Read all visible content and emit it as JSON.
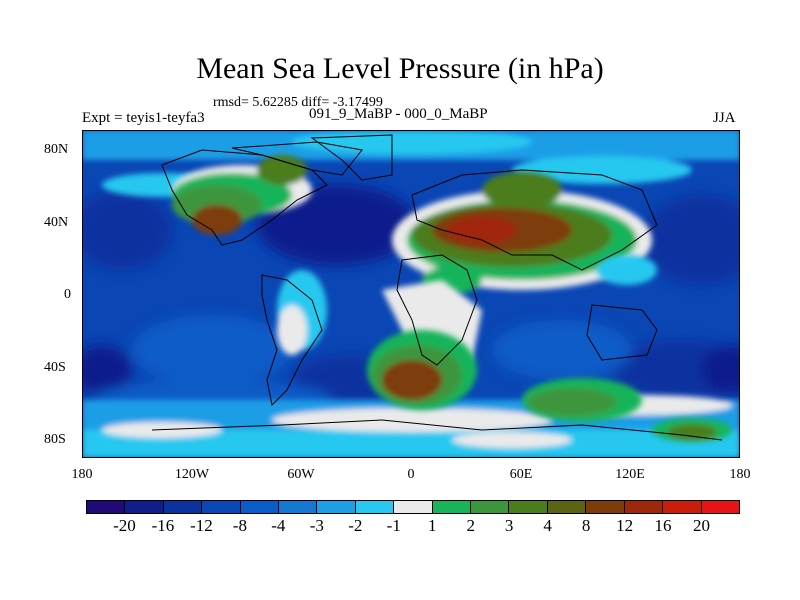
{
  "figure": {
    "title": "Mean Sea Level Pressure (in hPa)",
    "stats": "rmsd= 5.62285 diff= -3.17499",
    "experiment": "Expt = teyis1-teyfa3",
    "comparison": "091_9_MaBP - 000_0_MaBP",
    "season": "JJA"
  },
  "axes": {
    "lat_labels": [
      "80N",
      "40N",
      "0",
      "40S",
      "80S"
    ],
    "lon_labels": [
      "180",
      "120W",
      "60W",
      "0",
      "60E",
      "120E",
      "180"
    ]
  },
  "colorbar": {
    "colors": [
      "#1f0a78",
      "#0f1e8c",
      "#0a32a0",
      "#0a46b4",
      "#0a5cc8",
      "#1478d2",
      "#1e9ee6",
      "#28c8f0",
      "#eaeaea",
      "#19b45a",
      "#3c963c",
      "#4b7d1e",
      "#5a6414",
      "#7d3c0a",
      "#a0280a",
      "#c81e0a",
      "#e61414"
    ],
    "labels": [
      "-20",
      "-16",
      "-12",
      "-8",
      "-4",
      "-3",
      "-2",
      "-1",
      "1",
      "2",
      "3",
      "4",
      "8",
      "12",
      "16",
      "20"
    ]
  },
  "map": {
    "background": "#0a46b4",
    "land_outline_color": "#000000"
  }
}
